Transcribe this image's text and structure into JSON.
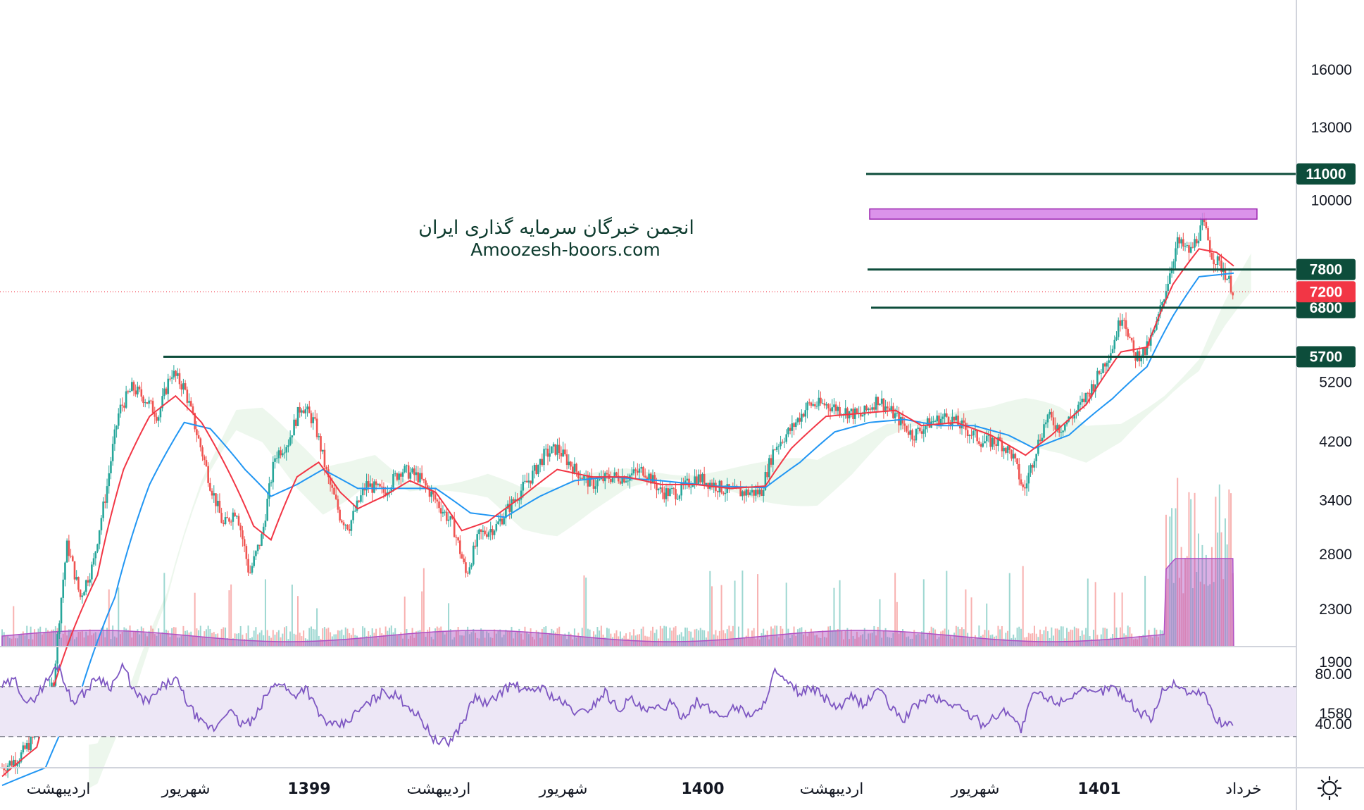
{
  "watermark": {
    "line1": "انجمن خبرگان سرمایه گذاری ایران",
    "line2": "Amoozesh-boors.com"
  },
  "colors": {
    "level": "#0d4d3b",
    "zone": "#d580e6",
    "price_tag": "#f23645",
    "ema_fast": "#f23645",
    "ema_slow": "#2196f3",
    "rsi_line": "#7e57c2",
    "rsi_band": "#ede7f6",
    "candle_up": "#26a69a",
    "candle_down": "#ef5350",
    "volume_ma": "#b04fc4"
  },
  "chart_data": {
    "type": "candlestick",
    "price_axis": {
      "scale": "log",
      "ticks": [
        16000,
        13000,
        10000,
        5200,
        4200,
        3400,
        2800,
        2300,
        1900,
        1580
      ]
    },
    "levels": [
      11000,
      7800,
      6800,
      5700
    ],
    "current_price": 7200,
    "resistance_zone": {
      "low": 9350,
      "high": 9700
    },
    "time_labels": [
      {
        "label": "اردیبهشت",
        "bold": false
      },
      {
        "label": "شهریور",
        "bold": false
      },
      {
        "label": "1399",
        "bold": true
      },
      {
        "label": "اردیبهشت",
        "bold": false
      },
      {
        "label": "شهریور",
        "bold": false
      },
      {
        "label": "1400",
        "bold": true
      },
      {
        "label": "اردیبهشت",
        "bold": false
      },
      {
        "label": "شهریور",
        "bold": false
      },
      {
        "label": "1401",
        "bold": true
      },
      {
        "label": "خرداد",
        "bold": false
      }
    ],
    "price_path": [
      [
        0,
        1300
      ],
      [
        20,
        1350
      ],
      [
        45,
        1500
      ],
      [
        60,
        1800
      ],
      [
        75,
        2900
      ],
      [
        90,
        2400
      ],
      [
        105,
        2700
      ],
      [
        120,
        3500
      ],
      [
        135,
        4700
      ],
      [
        150,
        5100
      ],
      [
        165,
        4900
      ],
      [
        180,
        4600
      ],
      [
        195,
        5400
      ],
      [
        210,
        5100
      ],
      [
        225,
        4300
      ],
      [
        240,
        3600
      ],
      [
        255,
        3100
      ],
      [
        270,
        3300
      ],
      [
        285,
        2600
      ],
      [
        300,
        3000
      ],
      [
        315,
        4000
      ],
      [
        330,
        4200
      ],
      [
        345,
        4800
      ],
      [
        360,
        4500
      ],
      [
        375,
        3700
      ],
      [
        390,
        3200
      ],
      [
        400,
        3100
      ],
      [
        420,
        3600
      ],
      [
        440,
        3500
      ],
      [
        460,
        3800
      ],
      [
        480,
        3700
      ],
      [
        500,
        3400
      ],
      [
        520,
        3100
      ],
      [
        535,
        2600
      ],
      [
        550,
        3000
      ],
      [
        570,
        3100
      ],
      [
        590,
        3400
      ],
      [
        610,
        3700
      ],
      [
        625,
        4000
      ],
      [
        640,
        4100
      ],
      [
        660,
        3800
      ],
      [
        680,
        3600
      ],
      [
        700,
        3700
      ],
      [
        720,
        3700
      ],
      [
        740,
        3800
      ],
      [
        760,
        3500
      ],
      [
        780,
        3500
      ],
      [
        800,
        3700
      ],
      [
        820,
        3600
      ],
      [
        840,
        3500
      ],
      [
        860,
        3500
      ],
      [
        875,
        3500
      ],
      [
        890,
        4100
      ],
      [
        910,
        4400
      ],
      [
        930,
        4800
      ],
      [
        950,
        4800
      ],
      [
        970,
        4700
      ],
      [
        990,
        4600
      ],
      [
        1010,
        4900
      ],
      [
        1030,
        4600
      ],
      [
        1050,
        4300
      ],
      [
        1070,
        4500
      ],
      [
        1090,
        4600
      ],
      [
        1110,
        4400
      ],
      [
        1130,
        4200
      ],
      [
        1150,
        4200
      ],
      [
        1165,
        4000
      ],
      [
        1178,
        3500
      ],
      [
        1190,
        4000
      ],
      [
        1205,
        4600
      ],
      [
        1220,
        4400
      ],
      [
        1240,
        4700
      ],
      [
        1260,
        5200
      ],
      [
        1280,
        5900
      ],
      [
        1292,
        6700
      ],
      [
        1305,
        5700
      ],
      [
        1318,
        5800
      ],
      [
        1330,
        6300
      ],
      [
        1342,
        7300
      ],
      [
        1355,
        8600
      ],
      [
        1370,
        8300
      ],
      [
        1385,
        9200
      ],
      [
        1395,
        8200
      ],
      [
        1408,
        7800
      ],
      [
        1420,
        7200
      ]
    ],
    "ema_fast_path": [
      [
        0,
        1260
      ],
      [
        40,
        1400
      ],
      [
        80,
        2100
      ],
      [
        110,
        2600
      ],
      [
        140,
        3800
      ],
      [
        170,
        4600
      ],
      [
        200,
        4950
      ],
      [
        230,
        4500
      ],
      [
        260,
        3800
      ],
      [
        290,
        3100
      ],
      [
        310,
        2950
      ],
      [
        340,
        3700
      ],
      [
        365,
        3900
      ],
      [
        390,
        3500
      ],
      [
        410,
        3300
      ],
      [
        440,
        3450
      ],
      [
        470,
        3650
      ],
      [
        500,
        3500
      ],
      [
        530,
        3050
      ],
      [
        560,
        3150
      ],
      [
        600,
        3450
      ],
      [
        640,
        3800
      ],
      [
        680,
        3700
      ],
      [
        720,
        3700
      ],
      [
        760,
        3600
      ],
      [
        800,
        3600
      ],
      [
        840,
        3550
      ],
      [
        880,
        3580
      ],
      [
        910,
        4100
      ],
      [
        950,
        4600
      ],
      [
        990,
        4650
      ],
      [
        1030,
        4700
      ],
      [
        1060,
        4450
      ],
      [
        1100,
        4500
      ],
      [
        1140,
        4300
      ],
      [
        1180,
        4000
      ],
      [
        1210,
        4300
      ],
      [
        1250,
        4800
      ],
      [
        1290,
        5800
      ],
      [
        1320,
        5900
      ],
      [
        1350,
        7400
      ],
      [
        1380,
        8400
      ],
      [
        1400,
        8300
      ],
      [
        1420,
        7900
      ]
    ],
    "ema_slow_path": [
      [
        0,
        1220
      ],
      [
        50,
        1300
      ],
      [
        90,
        1700
      ],
      [
        130,
        2400
      ],
      [
        170,
        3600
      ],
      [
        210,
        4500
      ],
      [
        240,
        4400
      ],
      [
        280,
        3800
      ],
      [
        310,
        3450
      ],
      [
        340,
        3600
      ],
      [
        370,
        3800
      ],
      [
        410,
        3550
      ],
      [
        450,
        3550
      ],
      [
        500,
        3550
      ],
      [
        540,
        3250
      ],
      [
        580,
        3200
      ],
      [
        620,
        3450
      ],
      [
        660,
        3650
      ],
      [
        700,
        3700
      ],
      [
        760,
        3650
      ],
      [
        820,
        3580
      ],
      [
        880,
        3560
      ],
      [
        920,
        3900
      ],
      [
        960,
        4350
      ],
      [
        1000,
        4500
      ],
      [
        1040,
        4550
      ],
      [
        1080,
        4450
      ],
      [
        1120,
        4450
      ],
      [
        1160,
        4300
      ],
      [
        1190,
        4100
      ],
      [
        1230,
        4300
      ],
      [
        1280,
        4900
      ],
      [
        1320,
        5500
      ],
      [
        1350,
        6600
      ],
      [
        1380,
        7600
      ],
      [
        1420,
        7700
      ]
    ],
    "rsi": {
      "upper": 70,
      "lower": 30,
      "ticks": [
        80.0,
        40.0
      ],
      "tick_labels": [
        "80.00",
        "40.00"
      ],
      "path": [
        [
          0,
          70
        ],
        [
          15,
          75
        ],
        [
          30,
          55
        ],
        [
          45,
          68
        ],
        [
          65,
          88
        ],
        [
          80,
          58
        ],
        [
          95,
          65
        ],
        [
          110,
          78
        ],
        [
          125,
          70
        ],
        [
          140,
          86
        ],
        [
          155,
          62
        ],
        [
          170,
          58
        ],
        [
          185,
          70
        ],
        [
          200,
          76
        ],
        [
          215,
          55
        ],
        [
          230,
          40
        ],
        [
          245,
          36
        ],
        [
          260,
          52
        ],
        [
          275,
          40
        ],
        [
          290,
          42
        ],
        [
          305,
          64
        ],
        [
          320,
          75
        ],
        [
          335,
          62
        ],
        [
          350,
          70
        ],
        [
          365,
          48
        ],
        [
          380,
          38
        ],
        [
          395,
          40
        ],
        [
          410,
          50
        ],
        [
          425,
          58
        ],
        [
          440,
          66
        ],
        [
          455,
          62
        ],
        [
          470,
          54
        ],
        [
          485,
          42
        ],
        [
          500,
          26
        ],
        [
          515,
          25
        ],
        [
          530,
          40
        ],
        [
          545,
          62
        ],
        [
          560,
          55
        ],
        [
          575,
          66
        ],
        [
          590,
          72
        ],
        [
          605,
          65
        ],
        [
          620,
          70
        ],
        [
          635,
          62
        ],
        [
          650,
          55
        ],
        [
          665,
          48
        ],
        [
          680,
          54
        ],
        [
          695,
          66
        ],
        [
          710,
          52
        ],
        [
          725,
          60
        ],
        [
          740,
          50
        ],
        [
          755,
          52
        ],
        [
          770,
          56
        ],
        [
          785,
          46
        ],
        [
          800,
          58
        ],
        [
          815,
          52
        ],
        [
          830,
          46
        ],
        [
          845,
          54
        ],
        [
          860,
          48
        ],
        [
          875,
          50
        ],
        [
          890,
          82
        ],
        [
          905,
          72
        ],
        [
          920,
          65
        ],
        [
          935,
          68
        ],
        [
          950,
          60
        ],
        [
          965,
          52
        ],
        [
          980,
          62
        ],
        [
          995,
          55
        ],
        [
          1010,
          70
        ],
        [
          1025,
          52
        ],
        [
          1040,
          44
        ],
        [
          1055,
          56
        ],
        [
          1070,
          62
        ],
        [
          1085,
          58
        ],
        [
          1100,
          55
        ],
        [
          1115,
          48
        ],
        [
          1130,
          40
        ],
        [
          1145,
          46
        ],
        [
          1160,
          52
        ],
        [
          1175,
          35
        ],
        [
          1190,
          66
        ],
        [
          1205,
          60
        ],
        [
          1220,
          58
        ],
        [
          1240,
          66
        ],
        [
          1260,
          64
        ],
        [
          1280,
          70
        ],
        [
          1295,
          62
        ],
        [
          1310,
          50
        ],
        [
          1325,
          44
        ],
        [
          1340,
          70
        ],
        [
          1355,
          72
        ],
        [
          1370,
          64
        ],
        [
          1385,
          66
        ],
        [
          1400,
          42
        ],
        [
          1420,
          40
        ]
      ]
    }
  }
}
